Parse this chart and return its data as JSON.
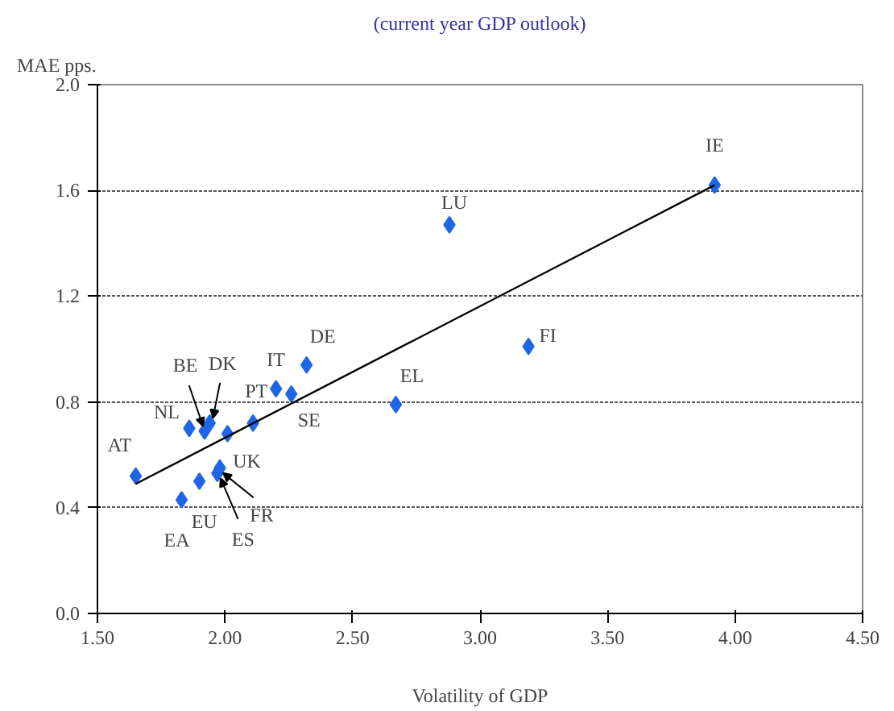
{
  "chart_data": {
    "type": "scatter",
    "subtitle": "(current year GDP outlook)",
    "xlabel": "Volatility of GDP",
    "ylabel": "MAE pps.",
    "xlim": [
      1.5,
      4.5
    ],
    "ylim": [
      0,
      2
    ],
    "xticks": [
      {
        "value": 1.5,
        "label": "1.50"
      },
      {
        "value": 2,
        "label": "2.00"
      },
      {
        "value": 2.5,
        "label": "2.50"
      },
      {
        "value": 3,
        "label": "3.00"
      },
      {
        "value": 3.5,
        "label": "3.50"
      },
      {
        "value": 4,
        "label": "4.00"
      },
      {
        "value": 4.5,
        "label": "4.50"
      }
    ],
    "yticks": [
      {
        "value": 0,
        "label": "0.0"
      },
      {
        "value": 0.4,
        "label": "0.4"
      },
      {
        "value": 0.8,
        "label": "0.8"
      },
      {
        "value": 1.2,
        "label": "1.2"
      },
      {
        "value": 1.6,
        "label": "1.6"
      },
      {
        "value": 2,
        "label": "2.0"
      }
    ],
    "grid": "y",
    "marker": "diamond",
    "series": [
      {
        "color": "#1f66e5",
        "x": [
          1.65,
          1.83,
          1.86,
          1.92,
          1.94,
          1.9,
          1.97,
          1.98,
          2.01,
          2.11,
          2.2,
          2.26,
          2.32,
          2.67,
          2.88,
          3.19,
          3.92
        ],
        "values": [
          0.52,
          0.43,
          0.7,
          0.69,
          0.72,
          0.5,
          0.53,
          0.55,
          0.68,
          0.72,
          0.85,
          0.83,
          0.94,
          0.79,
          1.47,
          1.01,
          1.62
        ]
      },
      {
        "type": "line",
        "color": "#000000",
        "marker": "none",
        "x": [
          1.65,
          3.92
        ],
        "values": [
          0.49,
          1.62
        ]
      }
    ],
    "annotations": [
      {
        "text": "AT",
        "x": 1.65,
        "y": 0.52
      },
      {
        "text": "EA",
        "x": 1.83,
        "y": 0.43
      },
      {
        "text": "NL",
        "x": 1.86,
        "y": 0.7
      },
      {
        "text": "BE",
        "x": 1.92,
        "y": 0.69
      },
      {
        "text": "DK",
        "x": 1.94,
        "y": 0.72
      },
      {
        "text": "EU",
        "x": 1.9,
        "y": 0.5
      },
      {
        "text": "ES",
        "x": 1.97,
        "y": 0.53
      },
      {
        "text": "FR",
        "x": 1.98,
        "y": 0.55
      },
      {
        "text": "UK",
        "x": 2.01,
        "y": 0.68
      },
      {
        "text": "PT",
        "x": 2.11,
        "y": 0.72
      },
      {
        "text": "IT",
        "x": 2.2,
        "y": 0.85
      },
      {
        "text": "SE",
        "x": 2.26,
        "y": 0.83
      },
      {
        "text": "DE",
        "x": 2.32,
        "y": 0.94
      },
      {
        "text": "EL",
        "x": 2.67,
        "y": 0.79
      },
      {
        "text": "LU",
        "x": 2.88,
        "y": 1.47
      },
      {
        "text": "FI",
        "x": 3.19,
        "y": 1.01
      },
      {
        "text": "IE",
        "x": 3.92,
        "y": 1.62
      }
    ]
  }
}
